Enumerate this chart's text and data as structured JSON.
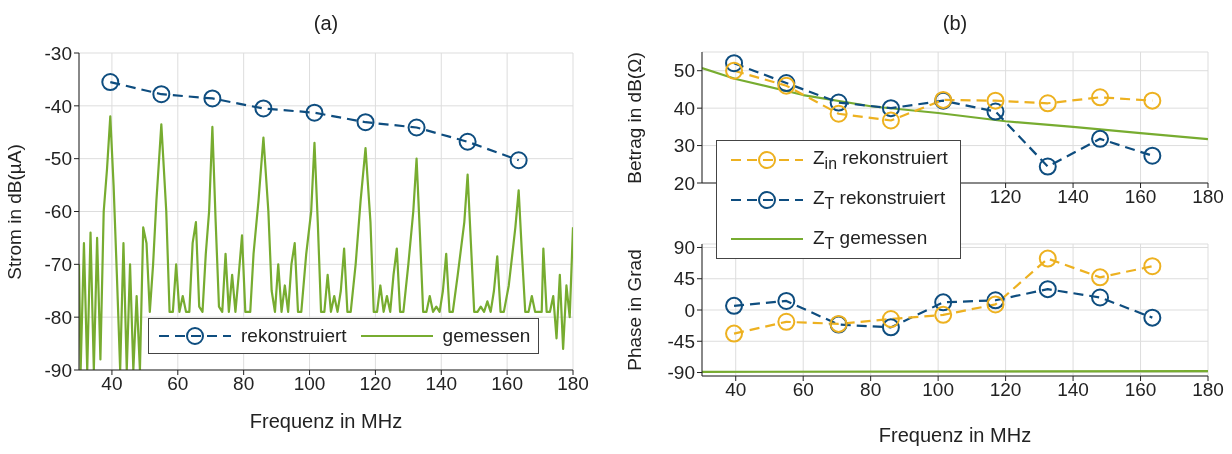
{
  "chart_data": [
    {
      "type": "line",
      "title": "(a)",
      "xlabel": "Frequenz in MHz",
      "ylabel": "Strom in dB(µA)",
      "xlim": [
        30,
        180
      ],
      "xticks": [
        40,
        60,
        80,
        100,
        120,
        140,
        160,
        180
      ],
      "ylim": [
        -90,
        -30
      ],
      "yticks": [
        -90,
        -80,
        -70,
        -60,
        -50,
        -40,
        -30
      ],
      "grid": true,
      "legend": "bottom",
      "series": [
        {
          "name": "rekonstruiert",
          "color": "#0e4d7f",
          "marker": "circle",
          "line_style": "dashed",
          "x": [
            39.5,
            55,
            70.5,
            86,
            101.5,
            117,
            132.5,
            148,
            163.5
          ],
          "values": [
            -35.5,
            -37.8,
            -38.6,
            -40.5,
            -41.3,
            -43.1,
            -44.1,
            -46.8,
            -50.3
          ]
        },
        {
          "name": "gemessen",
          "color": "#77ac30",
          "marker": "none",
          "line_style": "solid",
          "x": [
            30,
            30.5,
            31.5,
            32.5,
            33.5,
            34.5,
            35.5,
            36.5,
            37.5,
            38.5,
            39.5,
            40.5,
            41.5,
            42.5,
            43.5,
            44.5,
            45.5,
            46.5,
            47.5,
            48.5,
            49.5,
            50.5,
            51.5,
            52.5,
            53.5,
            55,
            56.5,
            57.5,
            58.5,
            59.5,
            60.5,
            61.5,
            62.5,
            63.5,
            64.5,
            65.5,
            66.5,
            67.5,
            68.5,
            69.5,
            70.5,
            71.5,
            72.5,
            73.5,
            74.5,
            75.5,
            76.5,
            77.5,
            78.5,
            79.5,
            80.5,
            82,
            83,
            84.5,
            86,
            87.5,
            88.5,
            89.5,
            90.5,
            91.5,
            92.5,
            93.5,
            94.5,
            95.5,
            96.5,
            97.5,
            99,
            100.5,
            101.5,
            102.5,
            103.5,
            104.5,
            105.5,
            106.5,
            107.5,
            108.5,
            109.5,
            110.5,
            111.5,
            112.5,
            114,
            115.5,
            117,
            118.5,
            119.5,
            120.5,
            121.5,
            122.5,
            123.5,
            124.5,
            125.5,
            126.5,
            127.5,
            128.5,
            130,
            131.5,
            132.5,
            133.5,
            134.5,
            135.5,
            136.5,
            137.5,
            138.5,
            139.5,
            140.5,
            141.5,
            142.5,
            143.5,
            145,
            147,
            148,
            149,
            150,
            151,
            152,
            153,
            154,
            155,
            156,
            157,
            158,
            159,
            160.5,
            162.5,
            163.5,
            164.5,
            165.5,
            166.5,
            167.5,
            168.5,
            169.5,
            170.5,
            171,
            172,
            173,
            174,
            175,
            176,
            177,
            178,
            179,
            180
          ],
          "values": [
            -70,
            -90,
            -66,
            -90,
            -64,
            -90,
            -65,
            -88,
            -60,
            -52,
            -42,
            -55,
            -72,
            -90,
            -66,
            -90,
            -70,
            -90,
            -76,
            -90,
            -63,
            -66,
            -79,
            -70,
            -58,
            -43.5,
            -60,
            -79,
            -79,
            -70,
            -79,
            -76,
            -79,
            -79,
            -66,
            -62,
            -78,
            -79,
            -68,
            -60,
            -44,
            -62,
            -78,
            -79,
            -68,
            -79,
            -72,
            -79,
            -72,
            -64.5,
            -79,
            -79,
            -68,
            -58,
            -46,
            -60,
            -75,
            -79,
            -70,
            -79,
            -74,
            -79,
            -70,
            -66,
            -79,
            -79,
            -68,
            -60,
            -47,
            -62,
            -79,
            -79,
            -72,
            -79,
            -76,
            -79,
            -75,
            -67,
            -79,
            -79,
            -70,
            -58,
            -48,
            -62,
            -79,
            -79,
            -74,
            -79,
            -76,
            -79,
            -72,
            -67,
            -79,
            -79,
            -70,
            -60,
            -50,
            -64,
            -79,
            -79,
            -76,
            -79,
            -78,
            -79,
            -75,
            -68,
            -79,
            -79,
            -72,
            -62,
            -53,
            -66,
            -79,
            -79,
            -78,
            -79,
            -77,
            -79,
            -75,
            -68.5,
            -79,
            -79,
            -74,
            -63,
            -56,
            -68,
            -79,
            -79,
            -76,
            -79,
            -79,
            -79,
            -67,
            -79,
            -79,
            -76,
            -84,
            -72,
            -86,
            -74,
            -80,
            -63
          ]
        }
      ]
    },
    {
      "type": "line",
      "title": "(b)",
      "ylabel": "Betrag in dB(Ω)",
      "xlim": [
        30,
        180
      ],
      "xticks": [
        {
          "value": 40,
          "label": null
        },
        {
          "value": 60,
          "label": null
        },
        {
          "value": 80,
          "label": null
        },
        {
          "value": 100,
          "label": null
        },
        120,
        140,
        160,
        180
      ],
      "ylim": [
        20,
        55
      ],
      "yticks": [
        20,
        30,
        40,
        50
      ],
      "grid": true,
      "legend": "bottom left",
      "series": [
        {
          "name": "Z$_{in}$ rekonstruiert",
          "color": "#edb120",
          "marker": "circle",
          "line_style": "dashed",
          "x": [
            39.5,
            55,
            70.5,
            86,
            101.5,
            117,
            132.5,
            148,
            163.5
          ],
          "values": [
            50,
            46,
            38.5,
            36.7,
            42.2,
            42,
            41.3,
            42.9,
            42
          ]
        },
        {
          "name": "Z$_{T}$ rekonstruiert",
          "color": "#0e4d7f",
          "marker": "circle",
          "line_style": "dashed",
          "x": [
            39.5,
            55,
            70.5,
            86,
            101.5,
            117,
            132.5,
            148,
            163.5
          ],
          "values": [
            52,
            46.7,
            41.5,
            40,
            42,
            39.1,
            24.4,
            31.8,
            27.3
          ]
        },
        {
          "name": "Z$_{T}$ gemessen",
          "color": "#77ac30",
          "marker": "none",
          "line_style": "solid",
          "x": [
            30,
            40,
            60,
            80,
            100,
            120,
            140,
            160,
            180
          ],
          "values": [
            50.7,
            47.8,
            43.5,
            40.5,
            38.7,
            36.5,
            35,
            33.3,
            31.7
          ]
        }
      ]
    },
    {
      "type": "line",
      "xlabel": "Frequenz in MHz",
      "ylabel": "Phase in Grad",
      "xlim": [
        30,
        180
      ],
      "xticks": [
        40,
        60,
        80,
        100,
        120,
        140,
        160,
        180
      ],
      "ylim": [
        -95,
        95
      ],
      "yticks": [
        -90,
        -45,
        0,
        45,
        90
      ],
      "grid": true,
      "series": [
        {
          "color": "#edb120",
          "marker": "circle",
          "line_style": "dashed",
          "x": [
            39.5,
            55,
            70.5,
            86,
            101.5,
            117,
            132.5,
            148,
            163.5
          ],
          "values": [
            -34,
            -17,
            -20,
            -13,
            -7,
            8,
            74,
            47,
            63
          ]
        },
        {
          "color": "#0e4d7f",
          "marker": "circle",
          "line_style": "dashed",
          "x": [
            39.5,
            55,
            70.5,
            86,
            101.5,
            117,
            132.5,
            148,
            163.5
          ],
          "values": [
            6,
            13,
            -21,
            -25,
            11,
            14,
            30,
            18,
            -11
          ]
        },
        {
          "color": "#77ac30",
          "marker": "none",
          "line_style": "solid",
          "x": [
            30,
            180
          ],
          "values": [
            -89,
            -88
          ]
        }
      ]
    }
  ]
}
